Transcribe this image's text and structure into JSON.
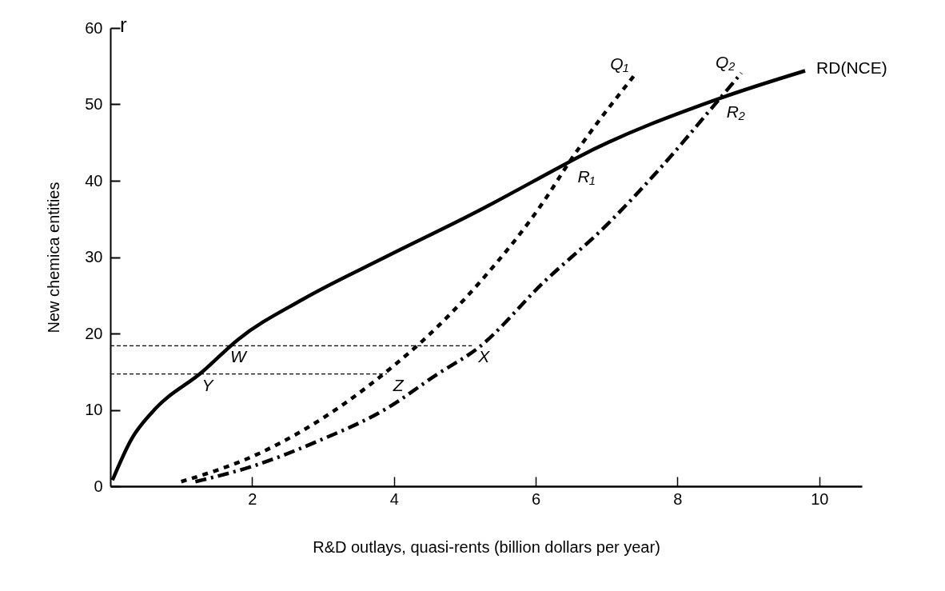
{
  "chart_data": {
    "type": "line",
    "xlabel": "R&D outlays, quasi-rents (billion dollars per year)",
    "ylabel": "New chemica entities",
    "xlim": [
      0,
      10.6
    ],
    "ylim": [
      0,
      60
    ],
    "xticks": [
      2,
      4,
      6,
      8,
      10
    ],
    "yticks": [
      0,
      10,
      20,
      30,
      40,
      50,
      60
    ],
    "grid": false,
    "marker": "none",
    "series": [
      {
        "name": "RD(NCE)",
        "color": "#000000",
        "line_style": "solid",
        "x": [
          0.03,
          0.3,
          0.6,
          1.3,
          1.8,
          2.7,
          3.9,
          5.2,
          6.3,
          6.6,
          8.6,
          9.8
        ],
        "values": [
          0.8,
          6.2,
          9.8,
          15,
          19.2,
          24.4,
          30.1,
          36.1,
          41.6,
          43.1,
          50.8,
          54.4
        ]
      },
      {
        "name": "Q₁",
        "color": "#000000",
        "line_style": "dotted",
        "x": [
          1.0,
          2.1,
          3.3,
          4.0,
          4.4,
          5.2,
          6.2,
          6.4,
          7.4
        ],
        "values": [
          0.6,
          4.3,
          10.8,
          15.8,
          19,
          26.6,
          38.5,
          41.4,
          53.9
        ]
      },
      {
        "name": "Q₂",
        "color": "#000000",
        "line_style": "dashed",
        "x": [
          1.2,
          2.0,
          2.9,
          3.9,
          4.6,
          5.2,
          6.1,
          7.0,
          7.8,
          8.5,
          8.9
        ],
        "values": [
          0.6,
          2.6,
          5.8,
          10.2,
          14.6,
          18.2,
          26.6,
          34.2,
          42.1,
          49.7,
          54.1
        ]
      },
      {
        "color": "#000000",
        "line_style": "dashed",
        "x": [
          0,
          5.1
        ],
        "values": [
          18.4,
          18.4
        ]
      },
      {
        "color": "#000000",
        "line_style": "dashed",
        "x": [
          0,
          3.9
        ],
        "values": [
          14.7,
          14.7
        ]
      }
    ],
    "annotations": [
      "r",
      {
        "text": "W",
        "x": 1.6,
        "y": 18.4
      },
      {
        "text": "Y",
        "x": 1.2,
        "y": 14.7
      },
      {
        "text": "Z",
        "x": 3.9,
        "y": 14.7
      },
      {
        "text": "X",
        "x": 5.1,
        "y": 18.4
      },
      {
        "text": "R₁",
        "x": 6.5,
        "y": 42
      },
      {
        "text": "R₂",
        "x": 8.6,
        "y": 50.5
      }
    ]
  }
}
